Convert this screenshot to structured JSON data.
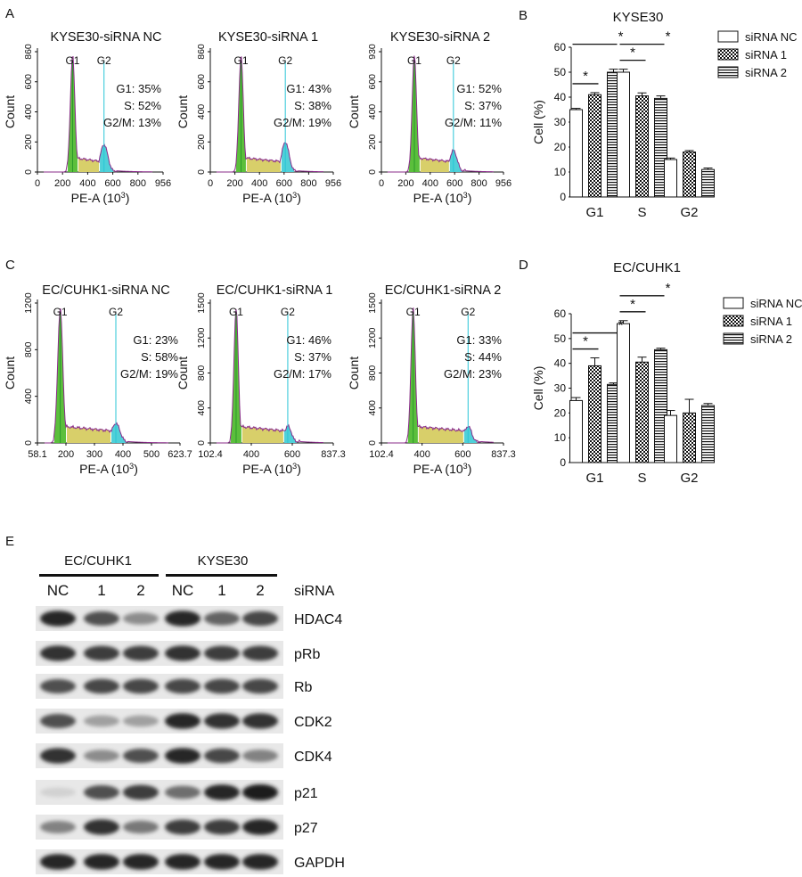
{
  "panel_letters": [
    "A",
    "B",
    "C",
    "D",
    "E"
  ],
  "histograms": [
    {
      "title": "KYSE30-siRNA NC",
      "ylabel": "Count",
      "xlabel": "PE-A (10",
      "xlabel_sup": "3",
      "xlabel_end": ")",
      "yticks": [
        "860",
        "600",
        "400",
        "200",
        "0"
      ],
      "xticks": [
        "0",
        "200",
        "400",
        "600",
        "800",
        "956"
      ],
      "g1_label": "G1",
      "g2_label": "G2",
      "stats": [
        "G1: 35%",
        "S: 52%",
        "G2/M: 13%"
      ]
    },
    {
      "title": "KYSE30-siRNA 1",
      "ylabel": "Count",
      "xlabel": "PE-A (10",
      "xlabel_sup": "3",
      "xlabel_end": ")",
      "yticks": [
        "860",
        "600",
        "400",
        "200",
        "0"
      ],
      "xticks": [
        "0",
        "200",
        "400",
        "600",
        "800",
        "956"
      ],
      "g1_label": "G1",
      "g2_label": "G2",
      "stats": [
        "G1: 43%",
        "S: 38%",
        "G2/M: 19%"
      ]
    },
    {
      "title": "KYSE30-siRNA 2",
      "ylabel": "Count",
      "xlabel": "PE-A (10",
      "xlabel_sup": "3",
      "xlabel_end": ")",
      "yticks": [
        "930",
        "600",
        "400",
        "200",
        "0"
      ],
      "xticks": [
        "0",
        "200",
        "400",
        "600",
        "800",
        "956"
      ],
      "g1_label": "G1",
      "g2_label": "G2",
      "stats": [
        "G1: 52%",
        "S: 37%",
        "G2/M: 11%"
      ]
    },
    {
      "title": "EC/CUHK1-siRNA NC",
      "ylabel": "Count",
      "xlabel": "PE-A (10",
      "xlabel_sup": "3",
      "xlabel_end": ")",
      "yticks": [
        "1200",
        "800",
        "400",
        "0"
      ],
      "xticks": [
        "58.1",
        "200",
        "300",
        "400",
        "500",
        "623.7"
      ],
      "g1_label": "G1",
      "g2_label": "G2",
      "stats": [
        "G1: 23%",
        "S: 58%",
        "G2/M: 19%"
      ]
    },
    {
      "title": "EC/CUHK1-siRNA 1",
      "ylabel": "Count",
      "xlabel": "PE-A (10",
      "xlabel_sup": "3",
      "xlabel_end": ")",
      "yticks": [
        "1500",
        "1200",
        "800",
        "400",
        "0"
      ],
      "xticks": [
        "102.4",
        "400",
        "600",
        "837.3"
      ],
      "g1_label": "G1",
      "g2_label": "G2",
      "stats": [
        "G1: 46%",
        "S: 37%",
        "G2/M: 17%"
      ]
    },
    {
      "title": "EC/CUHK1-siRNA 2",
      "ylabel": "Count",
      "xlabel": "PE-A (10",
      "xlabel_sup": "3",
      "xlabel_end": ")",
      "yticks": [
        "1500",
        "1200",
        "800",
        "400",
        "0"
      ],
      "xticks": [
        "102.4",
        "400",
        "600",
        "837.3"
      ],
      "g1_label": "G1",
      "g2_label": "G2",
      "stats": [
        "G1: 33%",
        "S: 44%",
        "G2/M: 23%"
      ]
    }
  ],
  "chart_data": [
    {
      "type": "bar",
      "title": "KYSE30",
      "xlabel": "",
      "ylabel": "Cell (%)",
      "categories": [
        "G1",
        "S",
        "G2"
      ],
      "ylim": [
        0,
        60
      ],
      "yticks": [
        "60",
        "50",
        "40",
        "30",
        "20",
        "10",
        "0"
      ],
      "series": [
        {
          "name": "siRNA NC",
          "values": [
            35,
            50,
            15
          ],
          "errors": [
            0.5,
            1.2,
            0.6
          ]
        },
        {
          "name": "siRNA  1",
          "values": [
            41,
            40.5,
            18
          ],
          "errors": [
            0.8,
            1.2,
            0.6
          ]
        },
        {
          "name": "siRNA  2",
          "values": [
            50,
            39.5,
            11
          ],
          "errors": [
            1.2,
            1.0,
            0.6
          ]
        }
      ],
      "significance": "*"
    },
    {
      "type": "bar",
      "title": "EC/CUHK1",
      "xlabel": "",
      "ylabel": "Cell (%)",
      "categories": [
        "G1",
        "S",
        "G2"
      ],
      "ylim": [
        0,
        60
      ],
      "yticks": [
        "60",
        "50",
        "40",
        "30",
        "20",
        "10",
        "0"
      ],
      "series": [
        {
          "name": "siRNA NC",
          "values": [
            25,
            56,
            19
          ],
          "errors": [
            1.2,
            1.2,
            2.0
          ]
        },
        {
          "name": "siRNA  1",
          "values": [
            39,
            40.5,
            20
          ],
          "errors": [
            3.2,
            2.0,
            5.5
          ]
        },
        {
          "name": "siRNA  2",
          "values": [
            31.5,
            45.5,
            23
          ],
          "errors": [
            0.6,
            0.6,
            0.8
          ]
        }
      ],
      "significance": "*"
    }
  ],
  "blot": {
    "groups": [
      "EC/CUHK1",
      "KYSE30"
    ],
    "lanes": [
      "NC",
      "1",
      "2",
      "NC",
      "1",
      "2"
    ],
    "lane_axis_label": "siRNA",
    "rows": [
      {
        "label": "HDAC4",
        "intensity": [
          0.95,
          0.75,
          0.45,
          0.95,
          0.65,
          0.8
        ]
      },
      {
        "label": "pRb",
        "intensity": [
          0.9,
          0.85,
          0.85,
          0.9,
          0.85,
          0.85
        ]
      },
      {
        "label": "Rb",
        "intensity": [
          0.75,
          0.8,
          0.8,
          0.8,
          0.8,
          0.8
        ]
      },
      {
        "label": "CDK2",
        "intensity": [
          0.75,
          0.35,
          0.35,
          0.95,
          0.9,
          0.9
        ]
      },
      {
        "label": "CDK4",
        "intensity": [
          0.9,
          0.45,
          0.75,
          0.95,
          0.8,
          0.5
        ]
      },
      {
        "label": "p21",
        "intensity": [
          0.1,
          0.75,
          0.85,
          0.6,
          0.95,
          1.0
        ]
      },
      {
        "label": "p27",
        "intensity": [
          0.5,
          0.9,
          0.55,
          0.85,
          0.85,
          0.95
        ]
      },
      {
        "label": "GAPDH",
        "intensity": [
          0.95,
          0.95,
          0.95,
          0.95,
          0.95,
          0.95
        ]
      }
    ]
  }
}
